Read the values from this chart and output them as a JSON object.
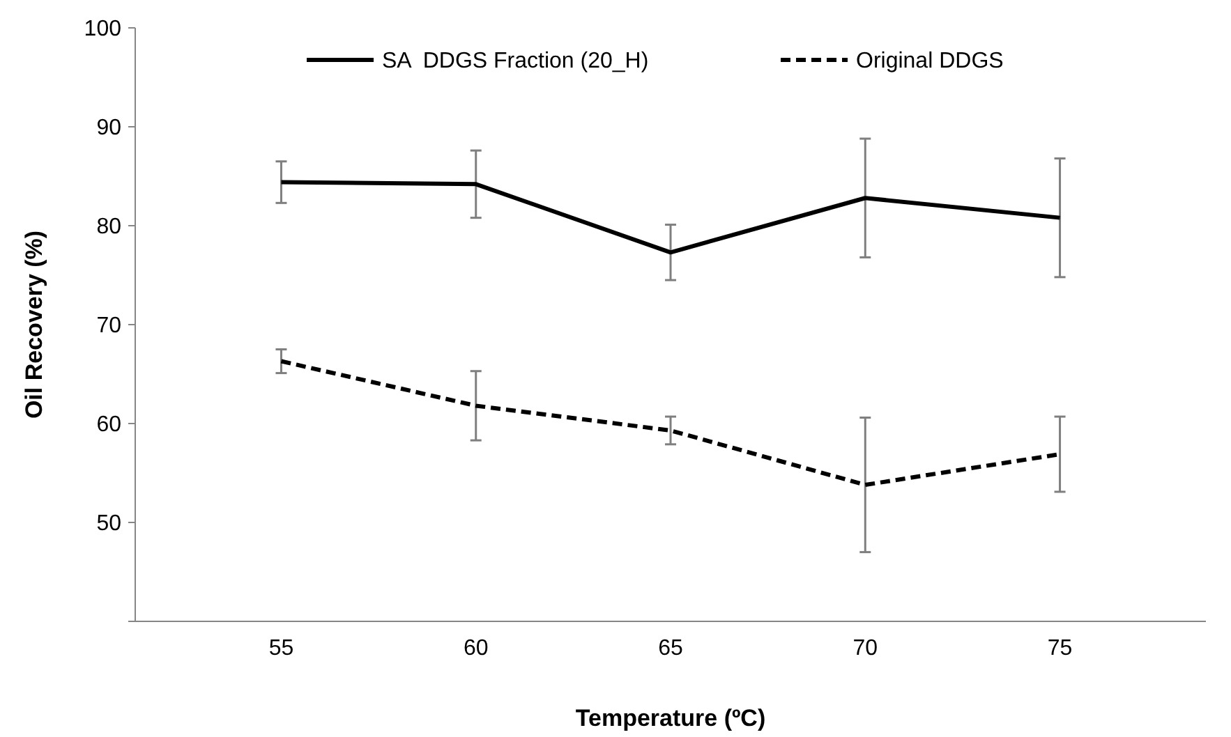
{
  "chart_data": {
    "type": "line",
    "xlabel": "Temperature (ºC)",
    "ylabel": "Oil Recovery (%)",
    "categories": [
      "55",
      "60",
      "65",
      "70",
      "75"
    ],
    "ylim": [
      40,
      100
    ],
    "yticks": [
      {
        "value": 40,
        "label": null
      },
      50,
      60,
      70,
      80,
      90,
      100
    ],
    "grid": false,
    "legend": "top",
    "series": [
      {
        "name": "SA  DDGS Fraction (20_H)",
        "color": "#000000",
        "line_style": "solid",
        "values": [
          84.4,
          84.2,
          77.3,
          82.8,
          80.8
        ],
        "errors": [
          2.1,
          3.4,
          2.8,
          6,
          6
        ]
      },
      {
        "name": "Original DDGS",
        "color": "#000000",
        "line_style": "dashed",
        "values": [
          66.3,
          61.8,
          59.3,
          53.8,
          56.9
        ],
        "errors": [
          1.2,
          3.5,
          1.4,
          6.8,
          3.8
        ]
      }
    ]
  }
}
